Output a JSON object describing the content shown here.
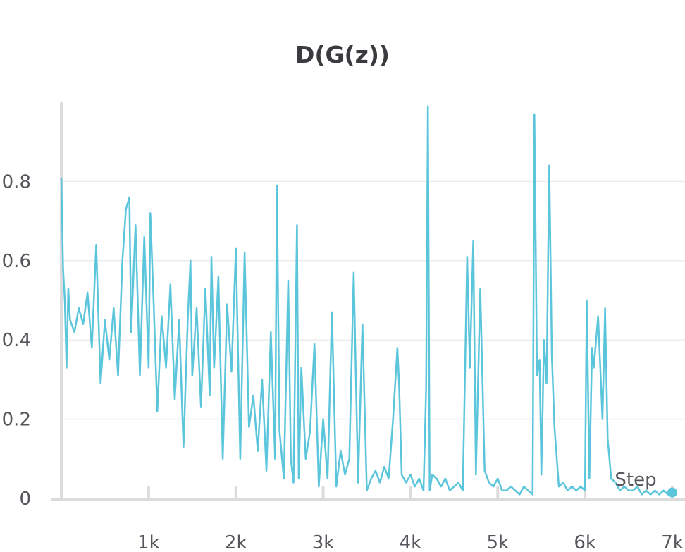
{
  "chart_data": {
    "type": "line",
    "title": "D(G(z))",
    "xlabel": "Step",
    "ylabel": "",
    "xlim": [
      0,
      7000
    ],
    "ylim": [
      0,
      1.0
    ],
    "x_ticks": [
      {
        "value": 1000,
        "label": "1k"
      },
      {
        "value": 2000,
        "label": "2k"
      },
      {
        "value": 3000,
        "label": "3k"
      },
      {
        "value": 4000,
        "label": "4k"
      },
      {
        "value": 5000,
        "label": "5k"
      },
      {
        "value": 6000,
        "label": "6k"
      },
      {
        "value": 7000,
        "label": "7k"
      }
    ],
    "y_ticks": [
      {
        "value": 0,
        "label": "0"
      },
      {
        "value": 0.2,
        "label": "0.2"
      },
      {
        "value": 0.4,
        "label": "0.4"
      },
      {
        "value": 0.6,
        "label": "0.6"
      },
      {
        "value": 0.8,
        "label": "0.8"
      }
    ],
    "grid": "horizontal",
    "color": "#5bc5db",
    "series": [
      {
        "name": "",
        "x": [
          0,
          20,
          40,
          60,
          80,
          100,
          150,
          200,
          250,
          300,
          350,
          400,
          450,
          500,
          550,
          600,
          650,
          700,
          740,
          780,
          800,
          850,
          900,
          950,
          1000,
          1020,
          1060,
          1100,
          1150,
          1200,
          1250,
          1300,
          1350,
          1400,
          1450,
          1480,
          1500,
          1550,
          1600,
          1650,
          1700,
          1720,
          1750,
          1800,
          1850,
          1900,
          1950,
          2000,
          2050,
          2100,
          2150,
          2200,
          2250,
          2300,
          2350,
          2400,
          2450,
          2470,
          2500,
          2550,
          2600,
          2630,
          2660,
          2700,
          2720,
          2750,
          2800,
          2850,
          2900,
          2950,
          3000,
          3050,
          3100,
          3150,
          3200,
          3250,
          3300,
          3350,
          3400,
          3450,
          3500,
          3550,
          3600,
          3650,
          3700,
          3750,
          3800,
          3850,
          3870,
          3900,
          3950,
          4000,
          4050,
          4100,
          4150,
          4180,
          4200,
          4220,
          4250,
          4300,
          4350,
          4400,
          4450,
          4500,
          4550,
          4600,
          4650,
          4680,
          4720,
          4750,
          4800,
          4850,
          4900,
          4950,
          5000,
          5050,
          5100,
          5150,
          5200,
          5250,
          5300,
          5350,
          5400,
          5420,
          5450,
          5480,
          5500,
          5530,
          5560,
          5590,
          5620,
          5650,
          5700,
          5750,
          5800,
          5850,
          5900,
          5950,
          6000,
          6020,
          6050,
          6080,
          6100,
          6150,
          6200,
          6230,
          6260,
          6300,
          6350,
          6400,
          6450,
          6500,
          6550,
          6600,
          6650,
          6700,
          6750,
          6800,
          6850,
          6900,
          6950,
          7000
        ],
        "y": [
          0.81,
          0.58,
          0.5,
          0.33,
          0.53,
          0.45,
          0.42,
          0.48,
          0.44,
          0.52,
          0.38,
          0.64,
          0.29,
          0.45,
          0.35,
          0.48,
          0.31,
          0.6,
          0.73,
          0.76,
          0.42,
          0.69,
          0.31,
          0.66,
          0.33,
          0.72,
          0.48,
          0.22,
          0.46,
          0.33,
          0.54,
          0.25,
          0.45,
          0.13,
          0.46,
          0.6,
          0.31,
          0.48,
          0.23,
          0.53,
          0.26,
          0.61,
          0.33,
          0.56,
          0.1,
          0.49,
          0.32,
          0.63,
          0.1,
          0.62,
          0.18,
          0.26,
          0.12,
          0.3,
          0.07,
          0.42,
          0.1,
          0.79,
          0.17,
          0.05,
          0.55,
          0.1,
          0.04,
          0.69,
          0.05,
          0.33,
          0.1,
          0.17,
          0.39,
          0.03,
          0.2,
          0.05,
          0.47,
          0.03,
          0.12,
          0.06,
          0.1,
          0.57,
          0.04,
          0.44,
          0.02,
          0.05,
          0.07,
          0.04,
          0.08,
          0.05,
          0.2,
          0.38,
          0.29,
          0.06,
          0.04,
          0.06,
          0.03,
          0.05,
          0.02,
          0.28,
          0.99,
          0.02,
          0.06,
          0.05,
          0.03,
          0.05,
          0.02,
          0.03,
          0.04,
          0.02,
          0.61,
          0.33,
          0.65,
          0.06,
          0.53,
          0.07,
          0.04,
          0.03,
          0.05,
          0.02,
          0.02,
          0.03,
          0.02,
          0.01,
          0.03,
          0.02,
          0.01,
          0.97,
          0.31,
          0.35,
          0.06,
          0.4,
          0.29,
          0.84,
          0.36,
          0.18,
          0.03,
          0.04,
          0.02,
          0.03,
          0.02,
          0.03,
          0.02,
          0.5,
          0.05,
          0.38,
          0.33,
          0.46,
          0.2,
          0.48,
          0.15,
          0.05,
          0.04,
          0.02,
          0.03,
          0.02,
          0.02,
          0.03,
          0.01,
          0.02,
          0.01,
          0.02,
          0.01,
          0.02,
          0.01,
          0.015
        ]
      }
    ]
  }
}
